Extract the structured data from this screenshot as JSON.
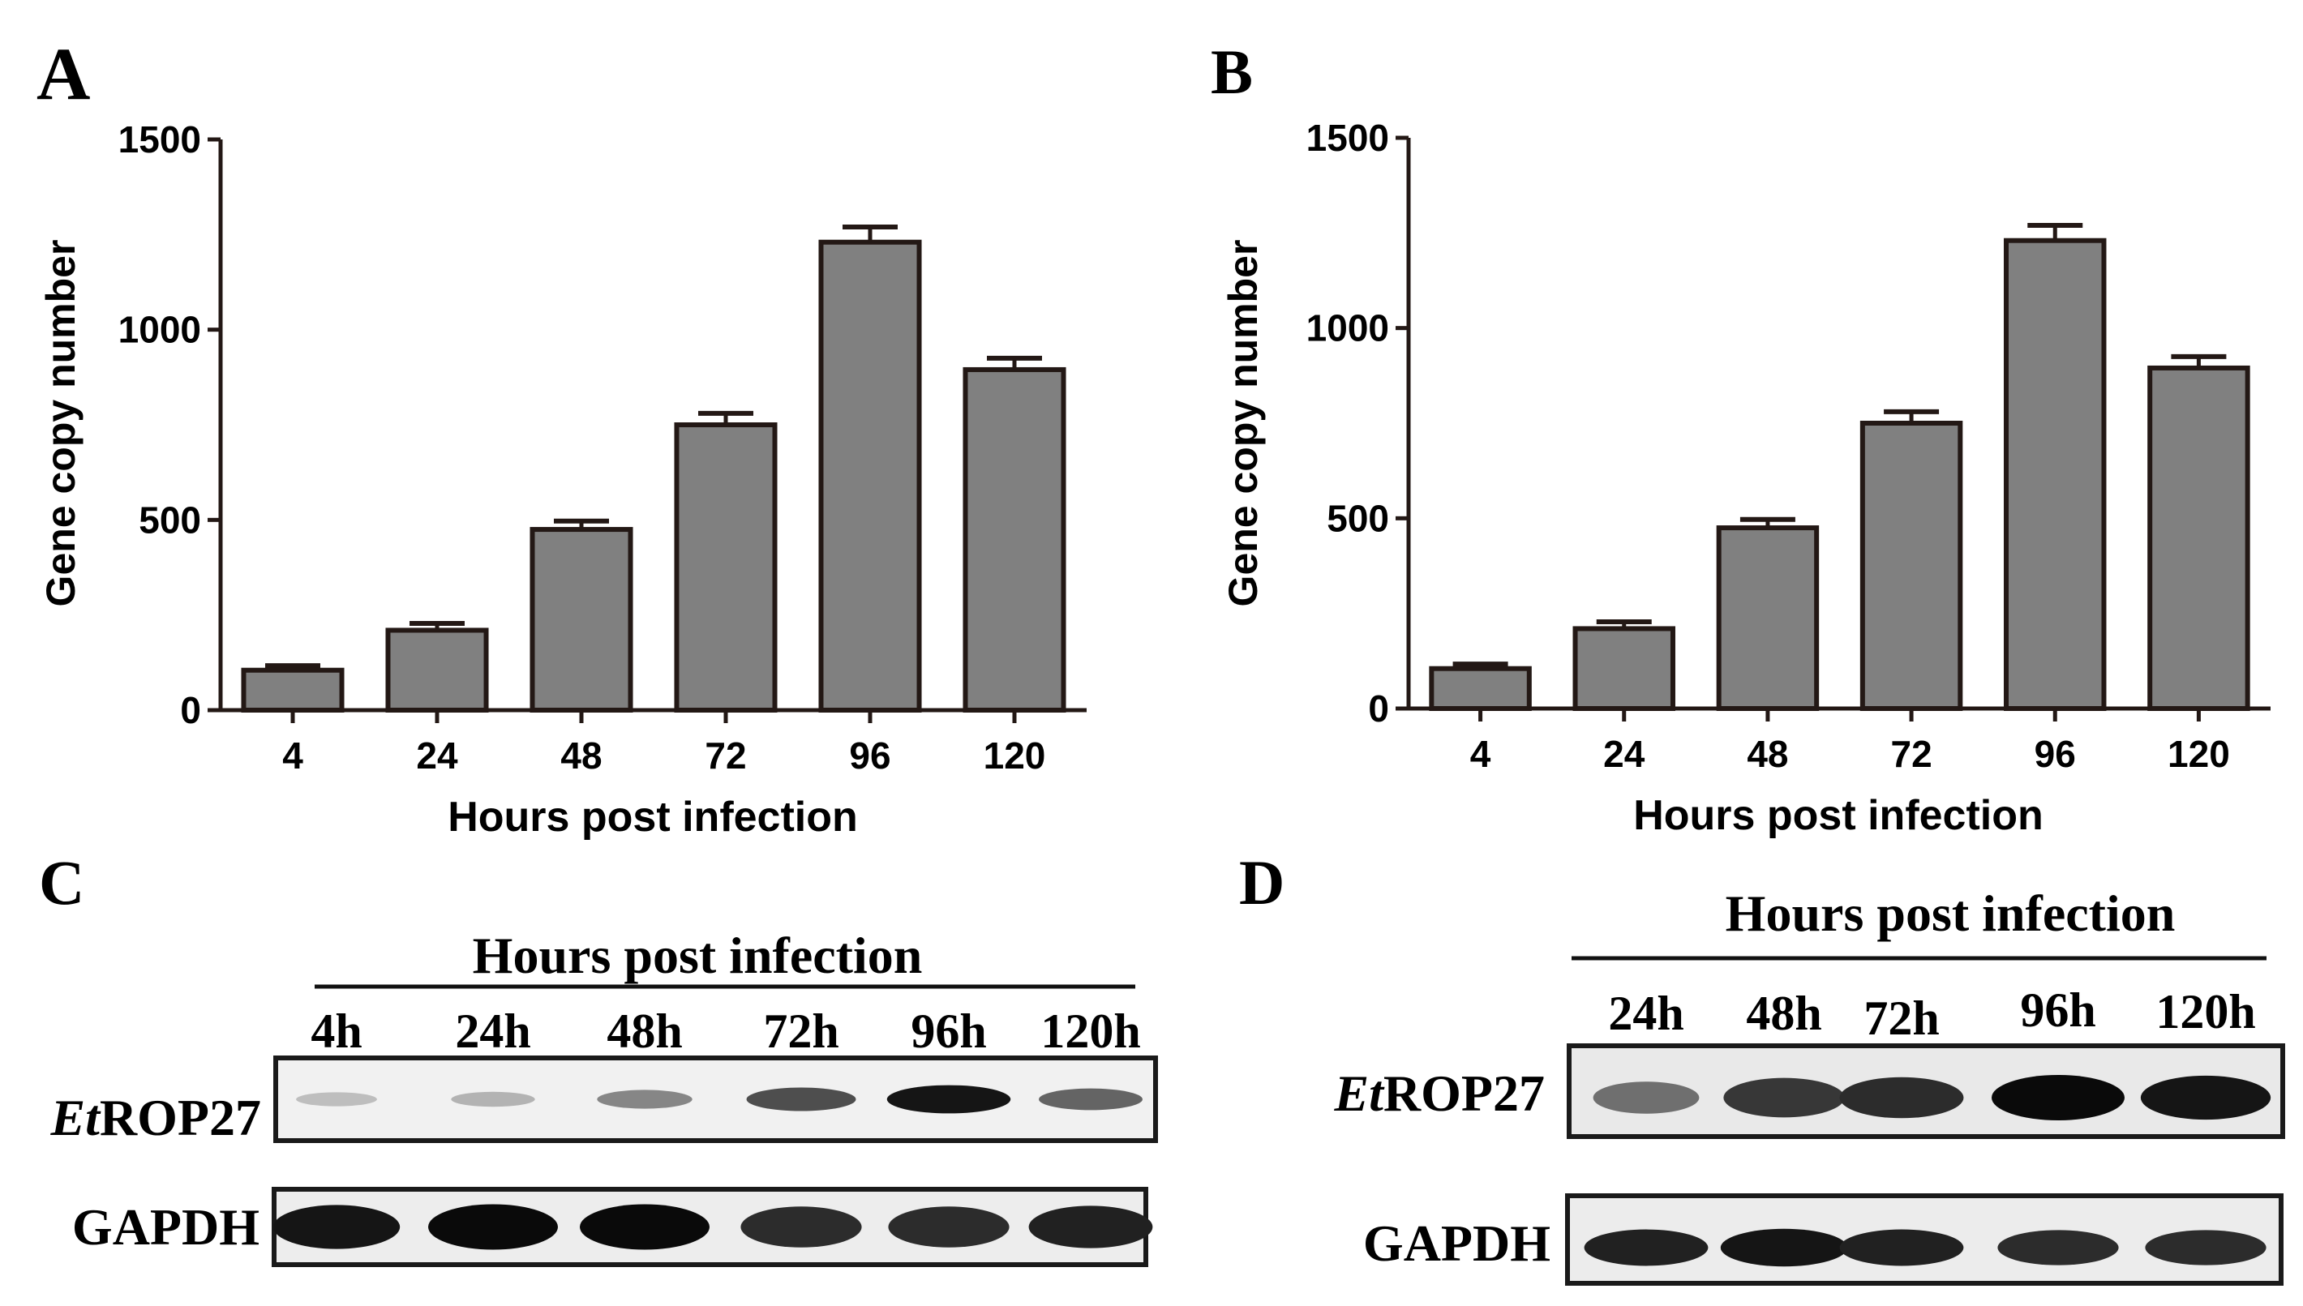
{
  "panel_letters": [
    "A",
    "B",
    "C",
    "D"
  ],
  "chart_data": [
    {
      "type": "bar",
      "panel": "A",
      "categories": [
        "4",
        "24",
        "48",
        "72",
        "96",
        "120"
      ],
      "values": [
        105,
        210,
        475,
        750,
        1230,
        895
      ],
      "errors": [
        12,
        18,
        22,
        30,
        40,
        30
      ],
      "xlabel": "Hours post infection",
      "ylabel": "Gene copy number",
      "ylim": [
        0,
        1500
      ],
      "yticks": [
        0,
        500,
        1000,
        1500
      ],
      "grid": false,
      "bar_color": "#808080",
      "bar_edge_color": "#231815"
    },
    {
      "type": "bar",
      "panel": "B",
      "categories": [
        "4",
        "24",
        "48",
        "72",
        "96",
        "120"
      ],
      "values": [
        105,
        210,
        475,
        750,
        1230,
        895
      ],
      "errors": [
        12,
        18,
        22,
        30,
        40,
        30
      ],
      "xlabel": "Hours post infection",
      "ylabel": "Gene copy number",
      "ylim": [
        0,
        1500
      ],
      "yticks": [
        0,
        500,
        1000,
        1500
      ],
      "grid": false,
      "bar_color": "#808080",
      "bar_edge_color": "#231815"
    }
  ],
  "blots": [
    {
      "panel": "C",
      "header": "Hours post infection",
      "lanes": [
        "4h",
        "24h",
        "48h",
        "72h",
        "96h",
        "120h"
      ],
      "rows": [
        {
          "label_italic": "Et",
          "label_rest": "ROP27",
          "intensity": [
            0.2,
            0.25,
            0.45,
            0.7,
            0.95,
            0.6
          ]
        },
        {
          "label_italic": "",
          "label_rest": "GAPDH",
          "intensity": [
            0.95,
            1.0,
            1.0,
            0.85,
            0.85,
            0.9
          ]
        }
      ]
    },
    {
      "panel": "D",
      "header": "Hours post infection",
      "lanes": [
        "24h",
        "48h",
        "72h",
        "96h",
        "120h"
      ],
      "rows": [
        {
          "label_italic": "Et",
          "label_rest": "ROP27",
          "intensity": [
            0.55,
            0.8,
            0.85,
            1.0,
            0.95
          ]
        },
        {
          "label_italic": "",
          "label_rest": "GAPDH",
          "intensity": [
            0.9,
            0.95,
            0.9,
            0.85,
            0.85
          ]
        }
      ]
    }
  ]
}
